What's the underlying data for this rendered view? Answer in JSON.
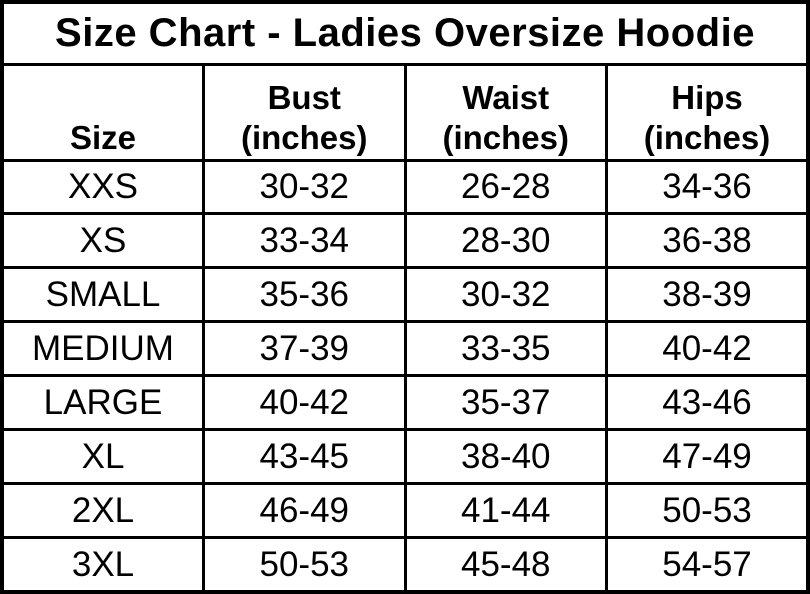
{
  "title": "Size Chart - Ladies Oversize Hoodie",
  "colors": {
    "background": "#ffffff",
    "border": "#000000",
    "text": "#000000"
  },
  "chart_data": {
    "type": "table",
    "title": "Size Chart - Ladies Oversize Hoodie",
    "columns": [
      {
        "label": "Size",
        "unit": ""
      },
      {
        "label": "Bust",
        "unit": "(inches)"
      },
      {
        "label": "Waist",
        "unit": "(inches)"
      },
      {
        "label": "Hips",
        "unit": "(inches)"
      }
    ],
    "rows": [
      {
        "size": "XXS",
        "bust": "30-32",
        "waist": "26-28",
        "hips": "34-36"
      },
      {
        "size": "XS",
        "bust": "33-34",
        "waist": "28-30",
        "hips": "36-38"
      },
      {
        "size": "SMALL",
        "bust": "35-36",
        "waist": "30-32",
        "hips": "38-39"
      },
      {
        "size": "MEDIUM",
        "bust": "37-39",
        "waist": "33-35",
        "hips": "40-42"
      },
      {
        "size": "LARGE",
        "bust": "40-42",
        "waist": "35-37",
        "hips": "43-46"
      },
      {
        "size": "XL",
        "bust": "43-45",
        "waist": "38-40",
        "hips": "47-49"
      },
      {
        "size": "2XL",
        "bust": "46-49",
        "waist": "41-44",
        "hips": "50-53"
      },
      {
        "size": "3XL",
        "bust": "50-53",
        "waist": "45-48",
        "hips": "54-57"
      }
    ]
  }
}
